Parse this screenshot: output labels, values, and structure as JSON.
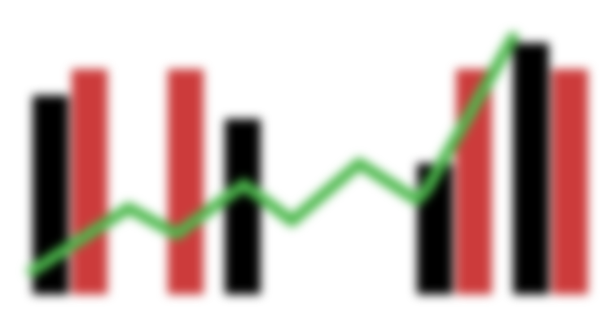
{
  "chart_data": {
    "type": "bar",
    "title": "",
    "xlabel": "",
    "ylabel": "",
    "ylim": [
      0,
      100
    ],
    "grid": false,
    "legend": "none",
    "groups": 6,
    "series": [
      {
        "kind": "bar",
        "color": "#000000",
        "values": [
          76,
          null,
          67,
          null,
          50,
          96
        ]
      },
      {
        "kind": "bar",
        "color": "#cc3b3b",
        "values": [
          86,
          86,
          null,
          null,
          86,
          86
        ]
      }
    ],
    "line": {
      "kind": "line",
      "color": "#4cb84c",
      "x": [
        0.0,
        1.0,
        1.5,
        2.2,
        2.7,
        3.4,
        4.0,
        4.1,
        5.0
      ],
      "values": [
        9,
        33,
        23,
        42,
        28,
        50,
        36,
        40,
        98
      ]
    }
  }
}
